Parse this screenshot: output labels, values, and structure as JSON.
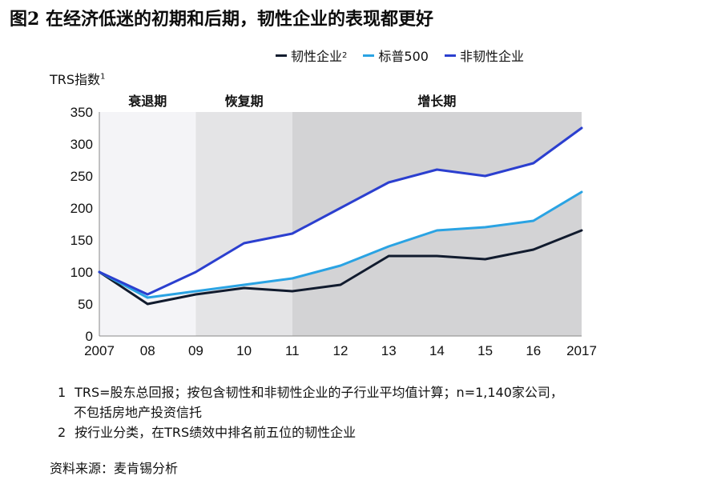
{
  "title": "图2 在经济低迷的初期和后期，韧性企业的表现都更好",
  "chart_data": {
    "type": "line",
    "ylabel": "TRS指数",
    "ylabel_note": "1",
    "x": [
      "2007",
      "08",
      "09",
      "10",
      "11",
      "12",
      "13",
      "14",
      "15",
      "16",
      "2017"
    ],
    "ylim": [
      0,
      350
    ],
    "yticks": [
      0,
      50,
      100,
      150,
      200,
      250,
      300,
      350
    ],
    "series": [
      {
        "name": "韧性企业",
        "note": "2",
        "color": "#111b2e",
        "values": [
          100,
          50,
          65,
          75,
          70,
          80,
          125,
          125,
          120,
          135,
          165
        ]
      },
      {
        "name": "标普500",
        "color": "#2aa3e3",
        "values": [
          100,
          60,
          70,
          80,
          90,
          110,
          140,
          165,
          170,
          180,
          225
        ]
      },
      {
        "name": "非韧性企业",
        "color": "#2b3fcf",
        "values": [
          100,
          65,
          100,
          145,
          160,
          200,
          240,
          260,
          250,
          270,
          325
        ]
      }
    ],
    "phases": [
      {
        "label": "衰退期",
        "from": "2007",
        "to": "09",
        "color": "#f4f4f7"
      },
      {
        "label": "恢复期",
        "from": "09",
        "to": "11",
        "color": "#e4e4e6"
      },
      {
        "label": "增长期",
        "from": "11",
        "to": "2017",
        "color": "#d3d3d5"
      }
    ],
    "legend_position": "top",
    "grid": false
  },
  "notes": [
    {
      "num": "1",
      "lines": [
        "TRS=股东总回报；按包含韧性和非韧性企业的子行业平均值计算；n=1,140家公司，",
        "不包括房地产投资信托"
      ]
    },
    {
      "num": "2",
      "lines": [
        "按行业分类，在TRS绩效中排名前五位的韧性企业"
      ]
    }
  ],
  "source": "资料来源：麦肯锡分析"
}
